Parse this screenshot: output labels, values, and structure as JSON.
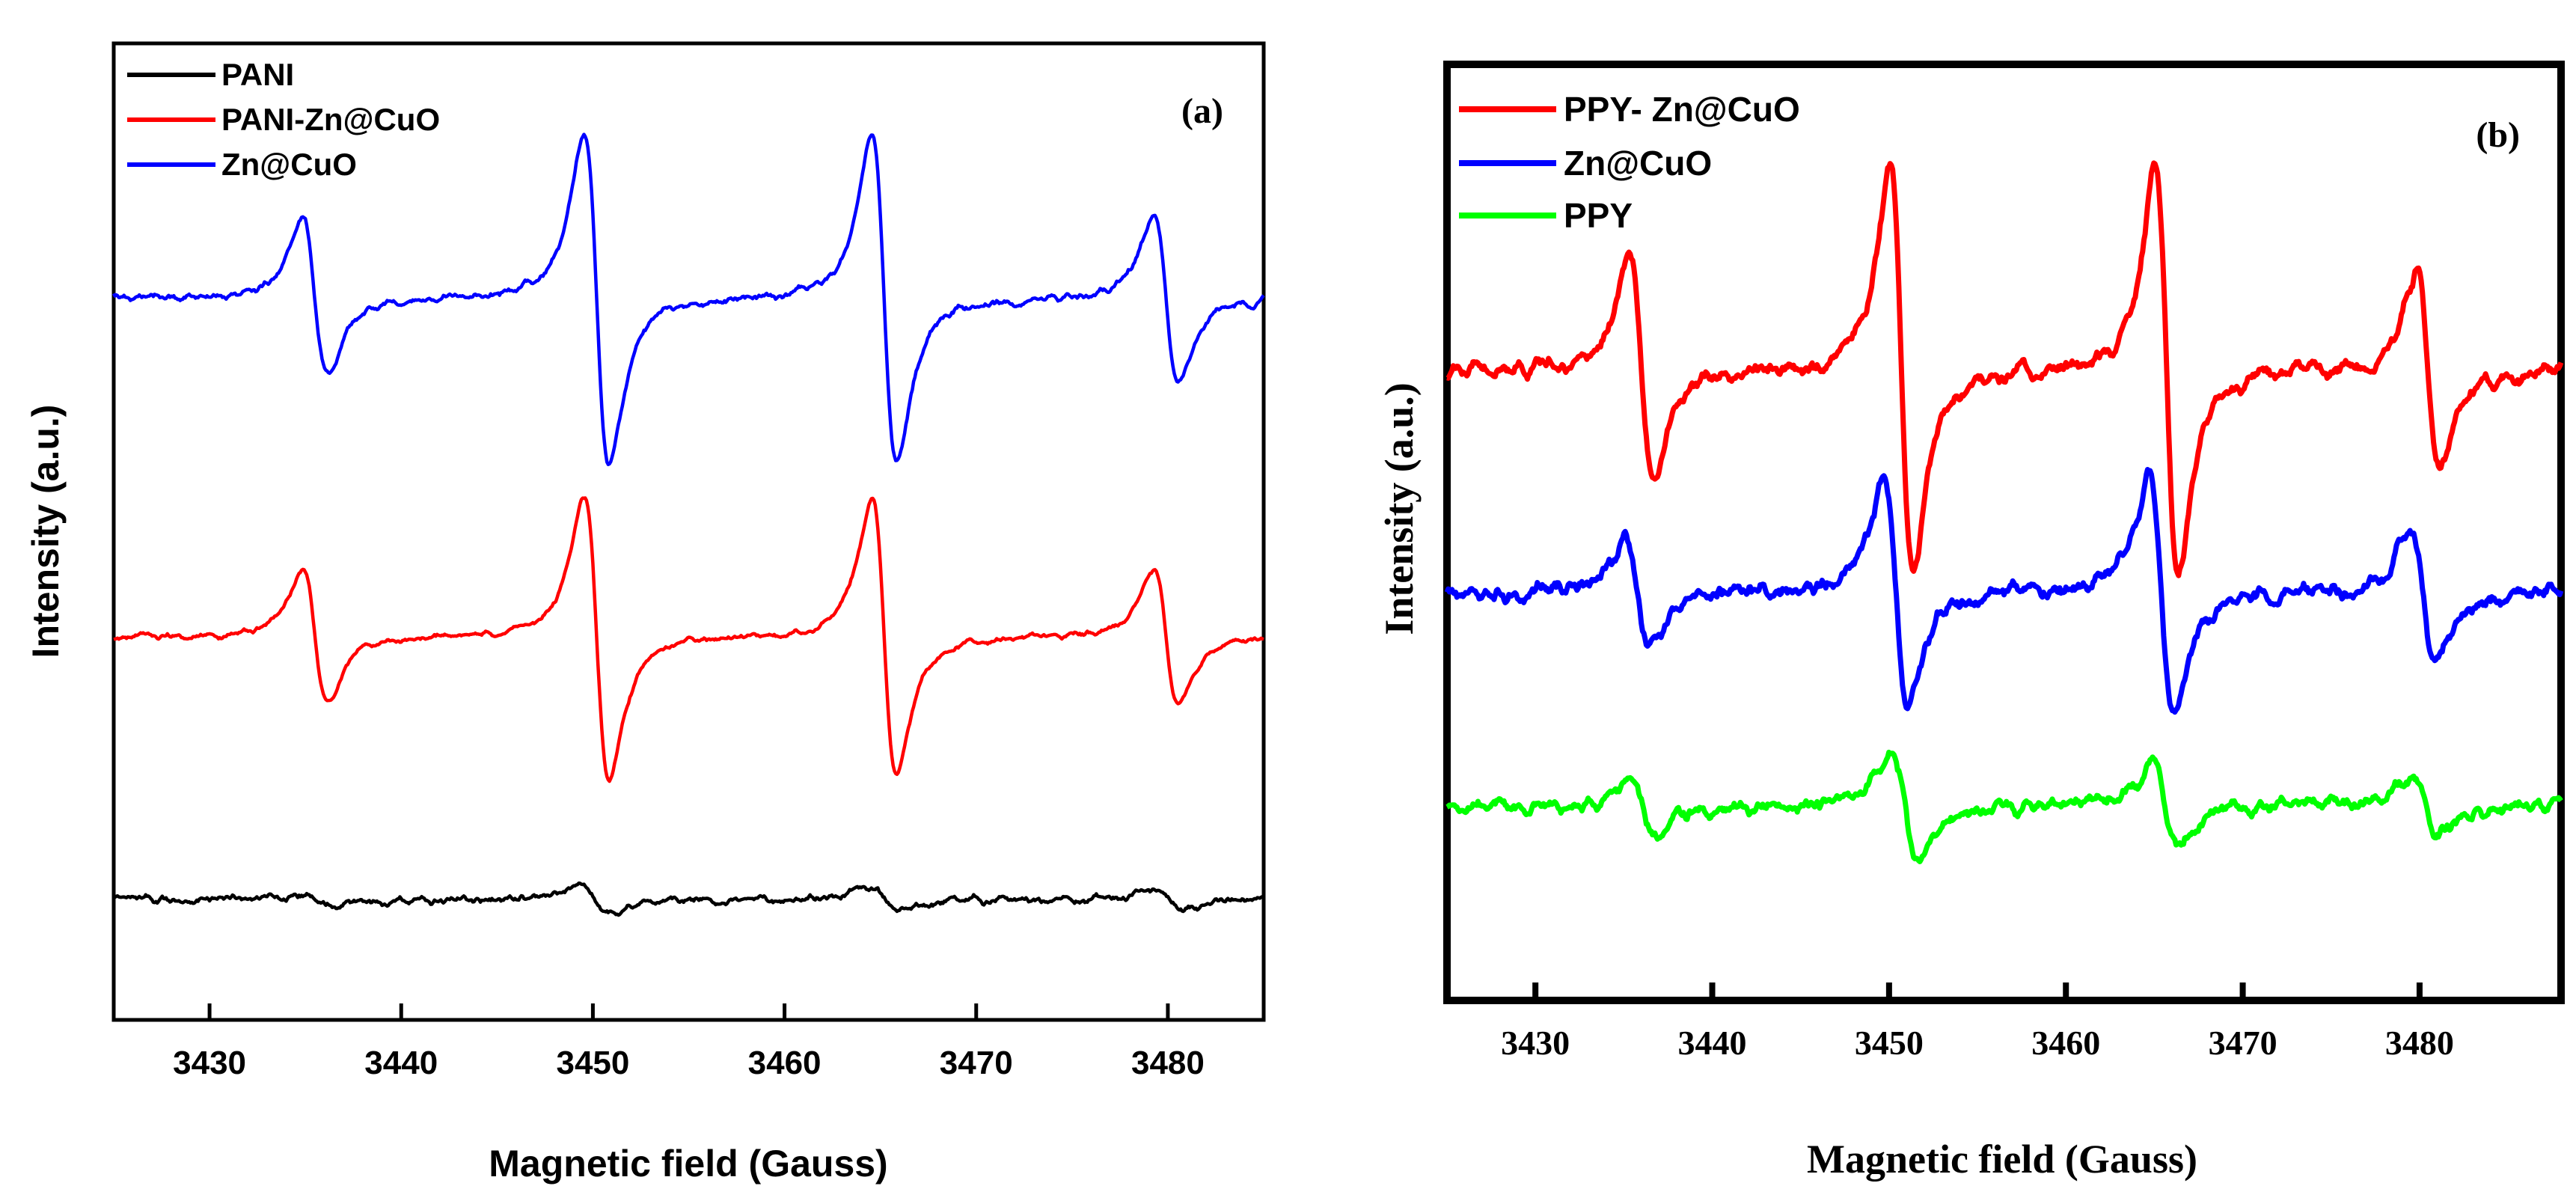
{
  "chart_data": [
    {
      "type": "line",
      "panel_label": "(a)",
      "xlabel": "Magnetic field (Gauss)",
      "ylabel": "Intensity (a.u.)",
      "xlim": [
        3425,
        3485
      ],
      "ylim": [
        -1.0,
        12.0
      ],
      "x_ticks": [
        3430,
        3440,
        3450,
        3460,
        3470,
        3480
      ],
      "y_ticks_visible": false,
      "legend_position": "top-left",
      "series": [
        {
          "name": "PANI",
          "color": "#000000",
          "baseline": 0.6,
          "noise": 0.08,
          "lines": [
            {
              "center": 3435.5,
              "amplitude": 0.12,
              "width": 0.7
            },
            {
              "center": 3450.2,
              "amplitude": 0.28,
              "width": 0.7
            },
            {
              "center": 3465.2,
              "amplitude": 0.26,
              "width": 0.7
            },
            {
              "center": 3480.0,
              "amplitude": 0.18,
              "width": 0.7
            }
          ]
        },
        {
          "name": "PANI-Zn@CuO",
          "color": "#ff0000",
          "baseline": 4.1,
          "noise": 0.06,
          "lines": [
            {
              "center": 3435.5,
              "amplitude": 1.35,
              "width": 0.65
            },
            {
              "center": 3450.2,
              "amplitude": 2.9,
              "width": 0.65
            },
            {
              "center": 3465.2,
              "amplitude": 2.8,
              "width": 0.65
            },
            {
              "center": 3479.9,
              "amplitude": 1.4,
              "width": 0.65
            }
          ]
        },
        {
          "name": "Zn@CuO",
          "color": "#0000ff",
          "baseline": 8.6,
          "noise": 0.08,
          "lines": [
            {
              "center": 3435.5,
              "amplitude": 1.6,
              "width": 0.65
            },
            {
              "center": 3450.2,
              "amplitude": 3.4,
              "width": 0.65
            },
            {
              "center": 3465.2,
              "amplitude": 3.3,
              "width": 0.65
            },
            {
              "center": 3479.9,
              "amplitude": 1.7,
              "width": 0.65
            }
          ]
        }
      ]
    },
    {
      "type": "line",
      "panel_label": "(b)",
      "xlabel": "Magnetic field (Gauss)",
      "ylabel": "Intensity (a.u.)",
      "xlim": [
        3425,
        3488
      ],
      "ylim": [
        -1.5,
        8.6
      ],
      "x_ticks": [
        3430,
        3440,
        3450,
        3460,
        3470,
        3480
      ],
      "y_ticks_visible": false,
      "legend_position": "top-left",
      "series": [
        {
          "name": "PPY- Zn@CuO",
          "color": "#ff0000",
          "baseline": 5.3,
          "noise": 0.13,
          "lines": [
            {
              "center": 3436.0,
              "amplitude": 1.9,
              "width": 0.65
            },
            {
              "center": 3450.7,
              "amplitude": 3.4,
              "width": 0.65
            },
            {
              "center": 3465.7,
              "amplitude": 3.4,
              "width": 0.65
            },
            {
              "center": 3480.5,
              "amplitude": 1.7,
              "width": 0.65
            }
          ]
        },
        {
          "name": "Zn@CuO",
          "color": "#0000ff",
          "baseline": 2.9,
          "noise": 0.14,
          "lines": [
            {
              "center": 3435.8,
              "amplitude": 0.9,
              "width": 0.7
            },
            {
              "center": 3450.4,
              "amplitude": 1.9,
              "width": 0.7
            },
            {
              "center": 3465.4,
              "amplitude": 1.95,
              "width": 0.7
            },
            {
              "center": 3480.2,
              "amplitude": 1.1,
              "width": 0.7
            }
          ]
        },
        {
          "name": "PPY",
          "color": "#00ff00",
          "baseline": 0.6,
          "noise": 0.12,
          "lines": [
            {
              "center": 3436.0,
              "amplitude": 0.5,
              "width": 0.7
            },
            {
              "center": 3450.9,
              "amplitude": 0.9,
              "width": 0.7
            },
            {
              "center": 3465.6,
              "amplitude": 0.75,
              "width": 0.7
            },
            {
              "center": 3480.4,
              "amplitude": 0.5,
              "width": 0.7
            }
          ]
        }
      ]
    }
  ]
}
